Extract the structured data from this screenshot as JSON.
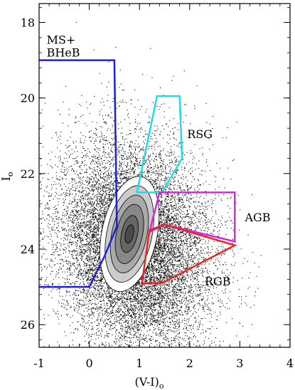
{
  "chart_data": {
    "type": "scatter",
    "xlabel": "(V-I)",
    "xlabel_sub": "o",
    "ylabel": "I",
    "ylabel_sub": "o",
    "xlim": [
      -1,
      4
    ],
    "ylim": [
      26.6,
      17.5
    ],
    "y_inverted": true,
    "x_ticks": [
      "-1",
      "0",
      "1",
      "2",
      "3",
      "4"
    ],
    "y_ticks": [
      "18",
      "20",
      "22",
      "24",
      "26"
    ],
    "x_tick_values": [
      -1,
      0,
      1,
      2,
      3,
      4
    ],
    "y_tick_values": [
      18,
      20,
      22,
      24,
      26
    ],
    "grid": false,
    "legend": "none",
    "point_color": "#000000",
    "cloud": {
      "center_color": 0.9,
      "center_mag": 23.9,
      "sigma_color": 0.75,
      "sigma_mag": 1.35,
      "correlation": 0.15,
      "faint_limit": 26.6,
      "bright_limit": 17.6
    },
    "density_contours": {
      "center": [
        0.8,
        23.6
      ],
      "levels": [
        {
          "semi_axes": [
            0.55,
            1.55
          ],
          "fill": "#ffffff"
        },
        {
          "semi_axes": [
            0.45,
            1.3
          ],
          "fill": "#cccccc"
        },
        {
          "semi_axes": [
            0.35,
            1.05
          ],
          "fill": "#aaaaaa"
        },
        {
          "semi_axes": [
            0.26,
            0.8
          ],
          "fill": "#888888"
        },
        {
          "semi_axes": [
            0.16,
            0.5
          ],
          "fill": "#666666"
        },
        {
          "semi_axes": [
            0.08,
            0.25
          ],
          "fill": "#4a4a4a"
        }
      ],
      "tilt_deg": 12
    },
    "regions": [
      {
        "name": "MS+ BHeB",
        "label_lines": [
          "MS+",
          "BHeB"
        ],
        "color": "#1f1fdd",
        "polyline": [
          [
            -1.0,
            19.0
          ],
          [
            0.5,
            19.0
          ],
          [
            0.55,
            23.4
          ],
          [
            0.3,
            24.2
          ],
          [
            0.0,
            25.0
          ],
          [
            -1.0,
            25.0
          ]
        ]
      },
      {
        "name": "RSG",
        "label_lines": [
          "RSG"
        ],
        "color": "#22dddd",
        "polygon": [
          [
            1.35,
            19.95
          ],
          [
            1.8,
            19.95
          ],
          [
            1.85,
            21.6
          ],
          [
            1.45,
            22.5
          ],
          [
            0.95,
            22.5
          ]
        ]
      },
      {
        "name": "AGB",
        "label_lines": [
          "AGB"
        ],
        "color": "#dd22dd",
        "polygon": [
          [
            1.4,
            22.5
          ],
          [
            2.9,
            22.5
          ],
          [
            2.9,
            23.8
          ],
          [
            1.5,
            23.35
          ],
          [
            1.2,
            23.55
          ]
        ]
      },
      {
        "name": "RGB",
        "label_lines": [
          "RGB"
        ],
        "color": "#ee2222",
        "polygon": [
          [
            1.05,
            24.9
          ],
          [
            1.2,
            23.5
          ],
          [
            1.5,
            23.35
          ],
          [
            2.9,
            23.9
          ],
          [
            1.45,
            24.9
          ]
        ]
      }
    ]
  }
}
